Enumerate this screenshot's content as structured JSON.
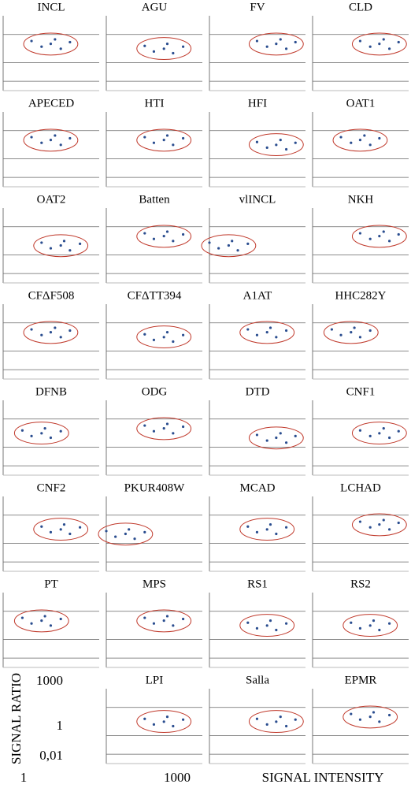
{
  "chart_data": {
    "type": "scatter",
    "xlabel": "SIGNAL INTENSITY",
    "ylabel": "SIGNAL RATIO",
    "xscale": "log",
    "yscale": "log",
    "xlim": [
      1,
      100000
    ],
    "ylim": [
      0.001,
      100000
    ],
    "xticks": [
      1,
      1000
    ],
    "yticks": [
      1000,
      1,
      {
        "value": 0.01,
        "label": "0,01"
      }
    ],
    "grid": true,
    "color": "#2a4d8f",
    "ellipse_color": "#c0392b",
    "panels": [
      {
        "title": "INCL",
        "x": [
          30,
          100,
          300,
          1000,
          3000,
          500
        ],
        "y": [
          200,
          50,
          100,
          30,
          150,
          300
        ]
      },
      {
        "title": "AGU",
        "x": [
          100,
          300,
          1000,
          3000,
          10000,
          1500
        ],
        "y": [
          60,
          15,
          30,
          10,
          50,
          100
        ]
      },
      {
        "title": "FV",
        "x": [
          300,
          1000,
          3000,
          10000,
          30000,
          5000
        ],
        "y": [
          200,
          50,
          100,
          30,
          150,
          300
        ]
      },
      {
        "title": "CLD",
        "x": [
          300,
          1000,
          3000,
          10000,
          30000,
          5000
        ],
        "y": [
          200,
          50,
          100,
          30,
          150,
          300
        ]
      },
      {
        "title": "APECED",
        "x": [
          30,
          100,
          300,
          1000,
          3000,
          500
        ],
        "y": [
          200,
          50,
          100,
          30,
          150,
          300
        ]
      },
      {
        "title": "HTI",
        "x": [
          100,
          300,
          1000,
          3000,
          10000,
          1500
        ],
        "y": [
          200,
          50,
          100,
          30,
          150,
          300
        ]
      },
      {
        "title": "HFI",
        "x": [
          300,
          1000,
          3000,
          10000,
          30000,
          5000
        ],
        "y": [
          60,
          15,
          30,
          10,
          50,
          100
        ]
      },
      {
        "title": "OAT1",
        "x": [
          30,
          100,
          300,
          1000,
          3000,
          500
        ],
        "y": [
          200,
          50,
          100,
          30,
          150,
          300
        ]
      },
      {
        "title": "OAT2",
        "x": [
          100,
          300,
          1000,
          3000,
          10000,
          1500
        ],
        "y": [
          20,
          5,
          10,
          3,
          15,
          30
        ]
      },
      {
        "title": "Batten",
        "x": [
          100,
          300,
          1000,
          3000,
          10000,
          1500
        ],
        "y": [
          200,
          50,
          100,
          30,
          150,
          300
        ]
      },
      {
        "title": "vlINCL",
        "x": [
          1,
          3,
          10,
          30,
          100,
          15
        ],
        "y": [
          20,
          5,
          10,
          3,
          15,
          30
        ]
      },
      {
        "title": "NKH",
        "x": [
          300,
          1000,
          3000,
          10000,
          30000,
          5000
        ],
        "y": [
          200,
          50,
          100,
          30,
          150,
          300
        ]
      },
      {
        "title": "CFΔF508",
        "x": [
          30,
          100,
          300,
          1000,
          3000,
          500
        ],
        "y": [
          200,
          50,
          100,
          30,
          150,
          300
        ]
      },
      {
        "title": "CFΔTT394",
        "x": [
          100,
          300,
          1000,
          3000,
          10000,
          1500
        ],
        "y": [
          60,
          15,
          30,
          10,
          50,
          100
        ]
      },
      {
        "title": "A1AT",
        "x": [
          100,
          300,
          1000,
          3000,
          10000,
          1500
        ],
        "y": [
          200,
          50,
          100,
          30,
          150,
          300
        ]
      },
      {
        "title": "HHC282Y",
        "x": [
          10,
          30,
          100,
          300,
          1000,
          150
        ],
        "y": [
          200,
          50,
          100,
          30,
          150,
          300
        ]
      },
      {
        "title": "DFNB",
        "x": [
          10,
          30,
          100,
          300,
          1000,
          150
        ],
        "y": [
          60,
          15,
          30,
          10,
          50,
          100
        ]
      },
      {
        "title": "ODG",
        "x": [
          100,
          300,
          1000,
          3000,
          10000,
          1500
        ],
        "y": [
          200,
          50,
          100,
          30,
          150,
          300
        ]
      },
      {
        "title": "DTD",
        "x": [
          300,
          1000,
          3000,
          10000,
          30000,
          5000
        ],
        "y": [
          20,
          5,
          10,
          3,
          15,
          30
        ]
      },
      {
        "title": "CNF1",
        "x": [
          300,
          1000,
          3000,
          10000,
          30000,
          5000
        ],
        "y": [
          60,
          15,
          30,
          10,
          50,
          100
        ]
      },
      {
        "title": "CNF2",
        "x": [
          100,
          300,
          1000,
          3000,
          10000,
          1500
        ],
        "y": [
          60,
          15,
          30,
          10,
          50,
          100
        ]
      },
      {
        "title": "PKUR408W",
        "x": [
          1,
          3,
          10,
          30,
          100,
          15
        ],
        "y": [
          20,
          5,
          10,
          3,
          15,
          30
        ]
      },
      {
        "title": "MCAD",
        "x": [
          100,
          300,
          1000,
          3000,
          10000,
          1500
        ],
        "y": [
          60,
          15,
          30,
          10,
          50,
          100
        ]
      },
      {
        "title": "LCHAD",
        "x": [
          300,
          1000,
          3000,
          10000,
          30000,
          5000
        ],
        "y": [
          200,
          50,
          100,
          30,
          150,
          300
        ]
      },
      {
        "title": "PT",
        "x": [
          10,
          30,
          100,
          300,
          1000,
          150
        ],
        "y": [
          200,
          50,
          100,
          30,
          150,
          300
        ]
      },
      {
        "title": "MPS",
        "x": [
          100,
          300,
          1000,
          3000,
          10000,
          1500
        ],
        "y": [
          200,
          50,
          100,
          30,
          150,
          300
        ]
      },
      {
        "title": "RS1",
        "x": [
          100,
          300,
          1000,
          3000,
          10000,
          1500
        ],
        "y": [
          60,
          15,
          30,
          10,
          50,
          100
        ]
      },
      {
        "title": "RS2",
        "x": [
          100,
          300,
          1000,
          3000,
          10000,
          1500
        ],
        "y": [
          60,
          15,
          30,
          10,
          50,
          100
        ]
      },
      {
        "title": "LPI",
        "x": [
          100,
          300,
          1000,
          3000,
          10000,
          1500
        ],
        "y": [
          60,
          15,
          30,
          10,
          50,
          100
        ]
      },
      {
        "title": "Salla",
        "x": [
          300,
          1000,
          3000,
          10000,
          30000,
          5000
        ],
        "y": [
          60,
          15,
          30,
          10,
          50,
          100
        ]
      },
      {
        "title": "EPMR",
        "x": [
          100,
          300,
          1000,
          3000,
          10000,
          1500
        ],
        "y": [
          200,
          50,
          100,
          30,
          150,
          300
        ]
      }
    ]
  }
}
